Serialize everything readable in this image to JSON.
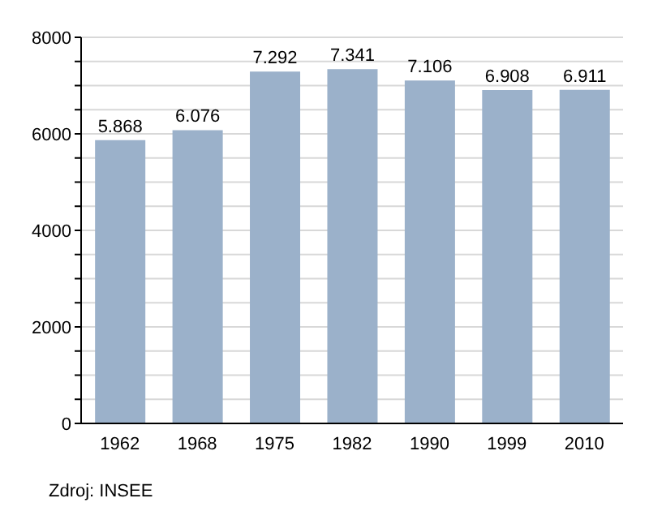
{
  "chart_data": {
    "type": "bar",
    "categories": [
      "1962",
      "1968",
      "1975",
      "1982",
      "1990",
      "1999",
      "2010"
    ],
    "values": [
      5868,
      6076,
      7292,
      7341,
      7106,
      6908,
      6911
    ],
    "value_labels": [
      "5.868",
      "6.076",
      "7.292",
      "7.341",
      "7.106",
      "6.908",
      "6.911"
    ],
    "color": "#9bb1ca",
    "ylim": [
      0,
      8000
    ],
    "yticks": [
      0,
      {
        "value": 500,
        "label": null
      },
      {
        "value": 1000,
        "label": null
      },
      {
        "value": 1500,
        "label": null
      },
      2000,
      {
        "value": 2500,
        "label": null
      },
      {
        "value": 3000,
        "label": null
      },
      {
        "value": 3500,
        "label": null
      },
      4000,
      {
        "value": 4500,
        "label": null
      },
      {
        "value": 5000,
        "label": null
      },
      {
        "value": 5500,
        "label": null
      },
      6000,
      {
        "value": 6500,
        "label": null
      },
      {
        "value": 7000,
        "label": null
      },
      {
        "value": 7500,
        "label": null
      },
      8000
    ],
    "grid": "y",
    "annotations": [
      "Zdroj: INSEE"
    ]
  }
}
